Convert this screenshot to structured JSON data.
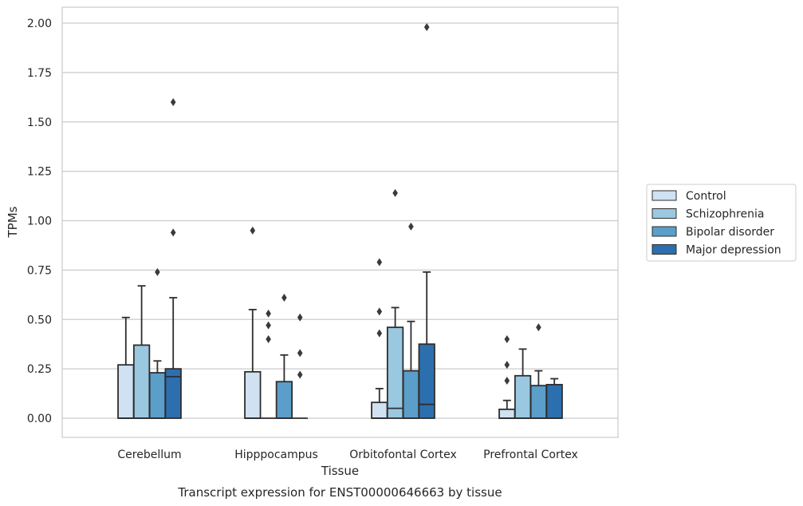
{
  "chart_data": {
    "type": "boxplot",
    "title": "Transcript expression for ENST00000646663 by tissue",
    "xlabel": "Tissue",
    "ylabel": "TPMs",
    "ylim": [
      -0.1,
      2.08
    ],
    "yticks": [
      "0.00",
      "0.25",
      "0.50",
      "0.75",
      "1.00",
      "1.25",
      "1.50",
      "1.75",
      "2.00"
    ],
    "ytick_values": [
      0,
      0.25,
      0.5,
      0.75,
      1.0,
      1.25,
      1.5,
      1.75,
      2.0
    ],
    "grid": true,
    "legend_position": "right",
    "categories": [
      "Cerebellum",
      "Hipppocampus",
      "Orbitofontal Cortex",
      "Prefrontal Cortex"
    ],
    "series": [
      {
        "name": "Control",
        "color": "#d0e1f2",
        "boxes": [
          {
            "q1": 0,
            "median": 0,
            "q3": 0.27,
            "whisker_low": 0,
            "whisker_high": 0.51,
            "outliers": []
          },
          {
            "q1": 0,
            "median": 0,
            "q3": 0.235,
            "whisker_low": 0,
            "whisker_high": 0.55,
            "outliers": [
              0.95
            ]
          },
          {
            "q1": 0,
            "median": 0,
            "q3": 0.08,
            "whisker_low": 0,
            "whisker_high": 0.15,
            "outliers": [
              0.43,
              0.54,
              0.79
            ]
          },
          {
            "q1": 0,
            "median": 0,
            "q3": 0.045,
            "whisker_low": 0,
            "whisker_high": 0.09,
            "outliers": [
              0.19,
              0.27,
              0.4
            ]
          }
        ]
      },
      {
        "name": "Schizophrenia",
        "color": "#9ac8e0",
        "boxes": [
          {
            "q1": 0,
            "median": 0,
            "q3": 0.37,
            "whisker_low": 0,
            "whisker_high": 0.67,
            "outliers": []
          },
          {
            "q1": 0,
            "median": 0,
            "q3": 0,
            "whisker_low": 0,
            "whisker_high": 0,
            "outliers": [
              0.4,
              0.47,
              0.53
            ]
          },
          {
            "q1": 0,
            "median": 0.05,
            "q3": 0.46,
            "whisker_low": 0,
            "whisker_high": 0.56,
            "outliers": [
              1.14
            ]
          },
          {
            "q1": 0,
            "median": 0,
            "q3": 0.215,
            "whisker_low": 0,
            "whisker_high": 0.35,
            "outliers": []
          }
        ]
      },
      {
        "name": "Bipolar disorder",
        "color": "#5a9ec9",
        "boxes": [
          {
            "q1": 0,
            "median": 0,
            "q3": 0.23,
            "whisker_low": 0,
            "whisker_high": 0.29,
            "outliers": [
              0.74
            ]
          },
          {
            "q1": 0,
            "median": 0,
            "q3": 0.185,
            "whisker_low": 0,
            "whisker_high": 0.32,
            "outliers": [
              0.61
            ]
          },
          {
            "q1": 0,
            "median": 0,
            "q3": 0.24,
            "whisker_low": 0,
            "whisker_high": 0.49,
            "outliers": [
              0.97
            ]
          },
          {
            "q1": 0,
            "median": 0,
            "q3": 0.165,
            "whisker_low": 0,
            "whisker_high": 0.24,
            "outliers": [
              0.46
            ]
          }
        ]
      },
      {
        "name": "Major depression",
        "color": "#2c6fae",
        "boxes": [
          {
            "q1": 0,
            "median": 0.21,
            "q3": 0.25,
            "whisker_low": 0,
            "whisker_high": 0.61,
            "outliers": [
              0.94,
              1.6
            ]
          },
          {
            "q1": 0,
            "median": 0,
            "q3": 0,
            "whisker_low": 0,
            "whisker_high": 0,
            "outliers": [
              0.22,
              0.33,
              0.51
            ]
          },
          {
            "q1": 0,
            "median": 0.07,
            "q3": 0.375,
            "whisker_low": 0,
            "whisker_high": 0.74,
            "outliers": [
              1.98
            ]
          },
          {
            "q1": 0,
            "median": 0,
            "q3": 0.17,
            "whisker_low": 0,
            "whisker_high": 0.2,
            "outliers": []
          }
        ]
      }
    ]
  }
}
